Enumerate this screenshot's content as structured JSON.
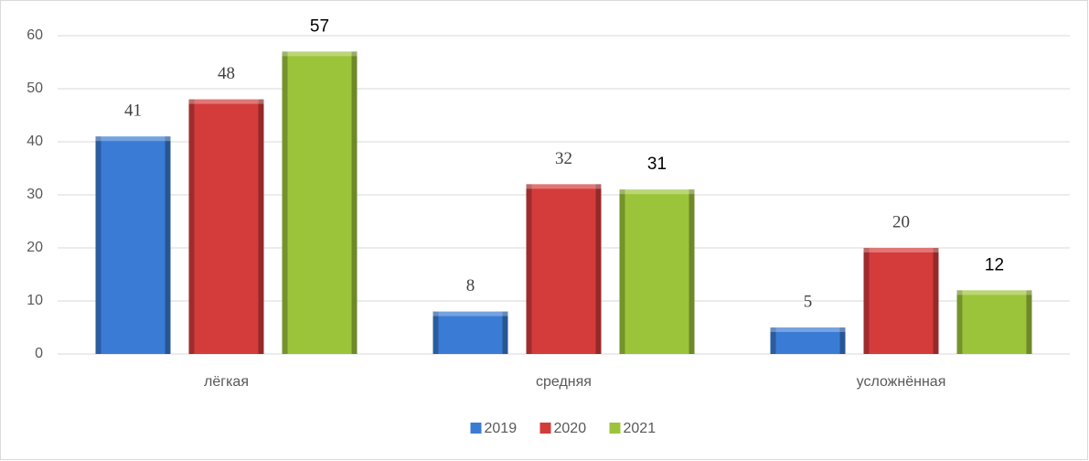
{
  "chart_data": {
    "type": "bar",
    "categories": [
      "лёгкая",
      "средняя",
      "усложнённая"
    ],
    "series": [
      {
        "name": "2019",
        "color": "#3a7bd5",
        "values": [
          41,
          8,
          5
        ]
      },
      {
        "name": "2020",
        "color": "#d43b3b",
        "values": [
          48,
          32,
          20
        ]
      },
      {
        "name": "2021",
        "color": "#9cc43a",
        "values": [
          57,
          31,
          12
        ]
      }
    ],
    "ylim": [
      0,
      60
    ],
    "yticks": [
      0,
      10,
      20,
      30,
      40,
      50,
      60
    ],
    "grid": true,
    "legend": "bottom"
  }
}
